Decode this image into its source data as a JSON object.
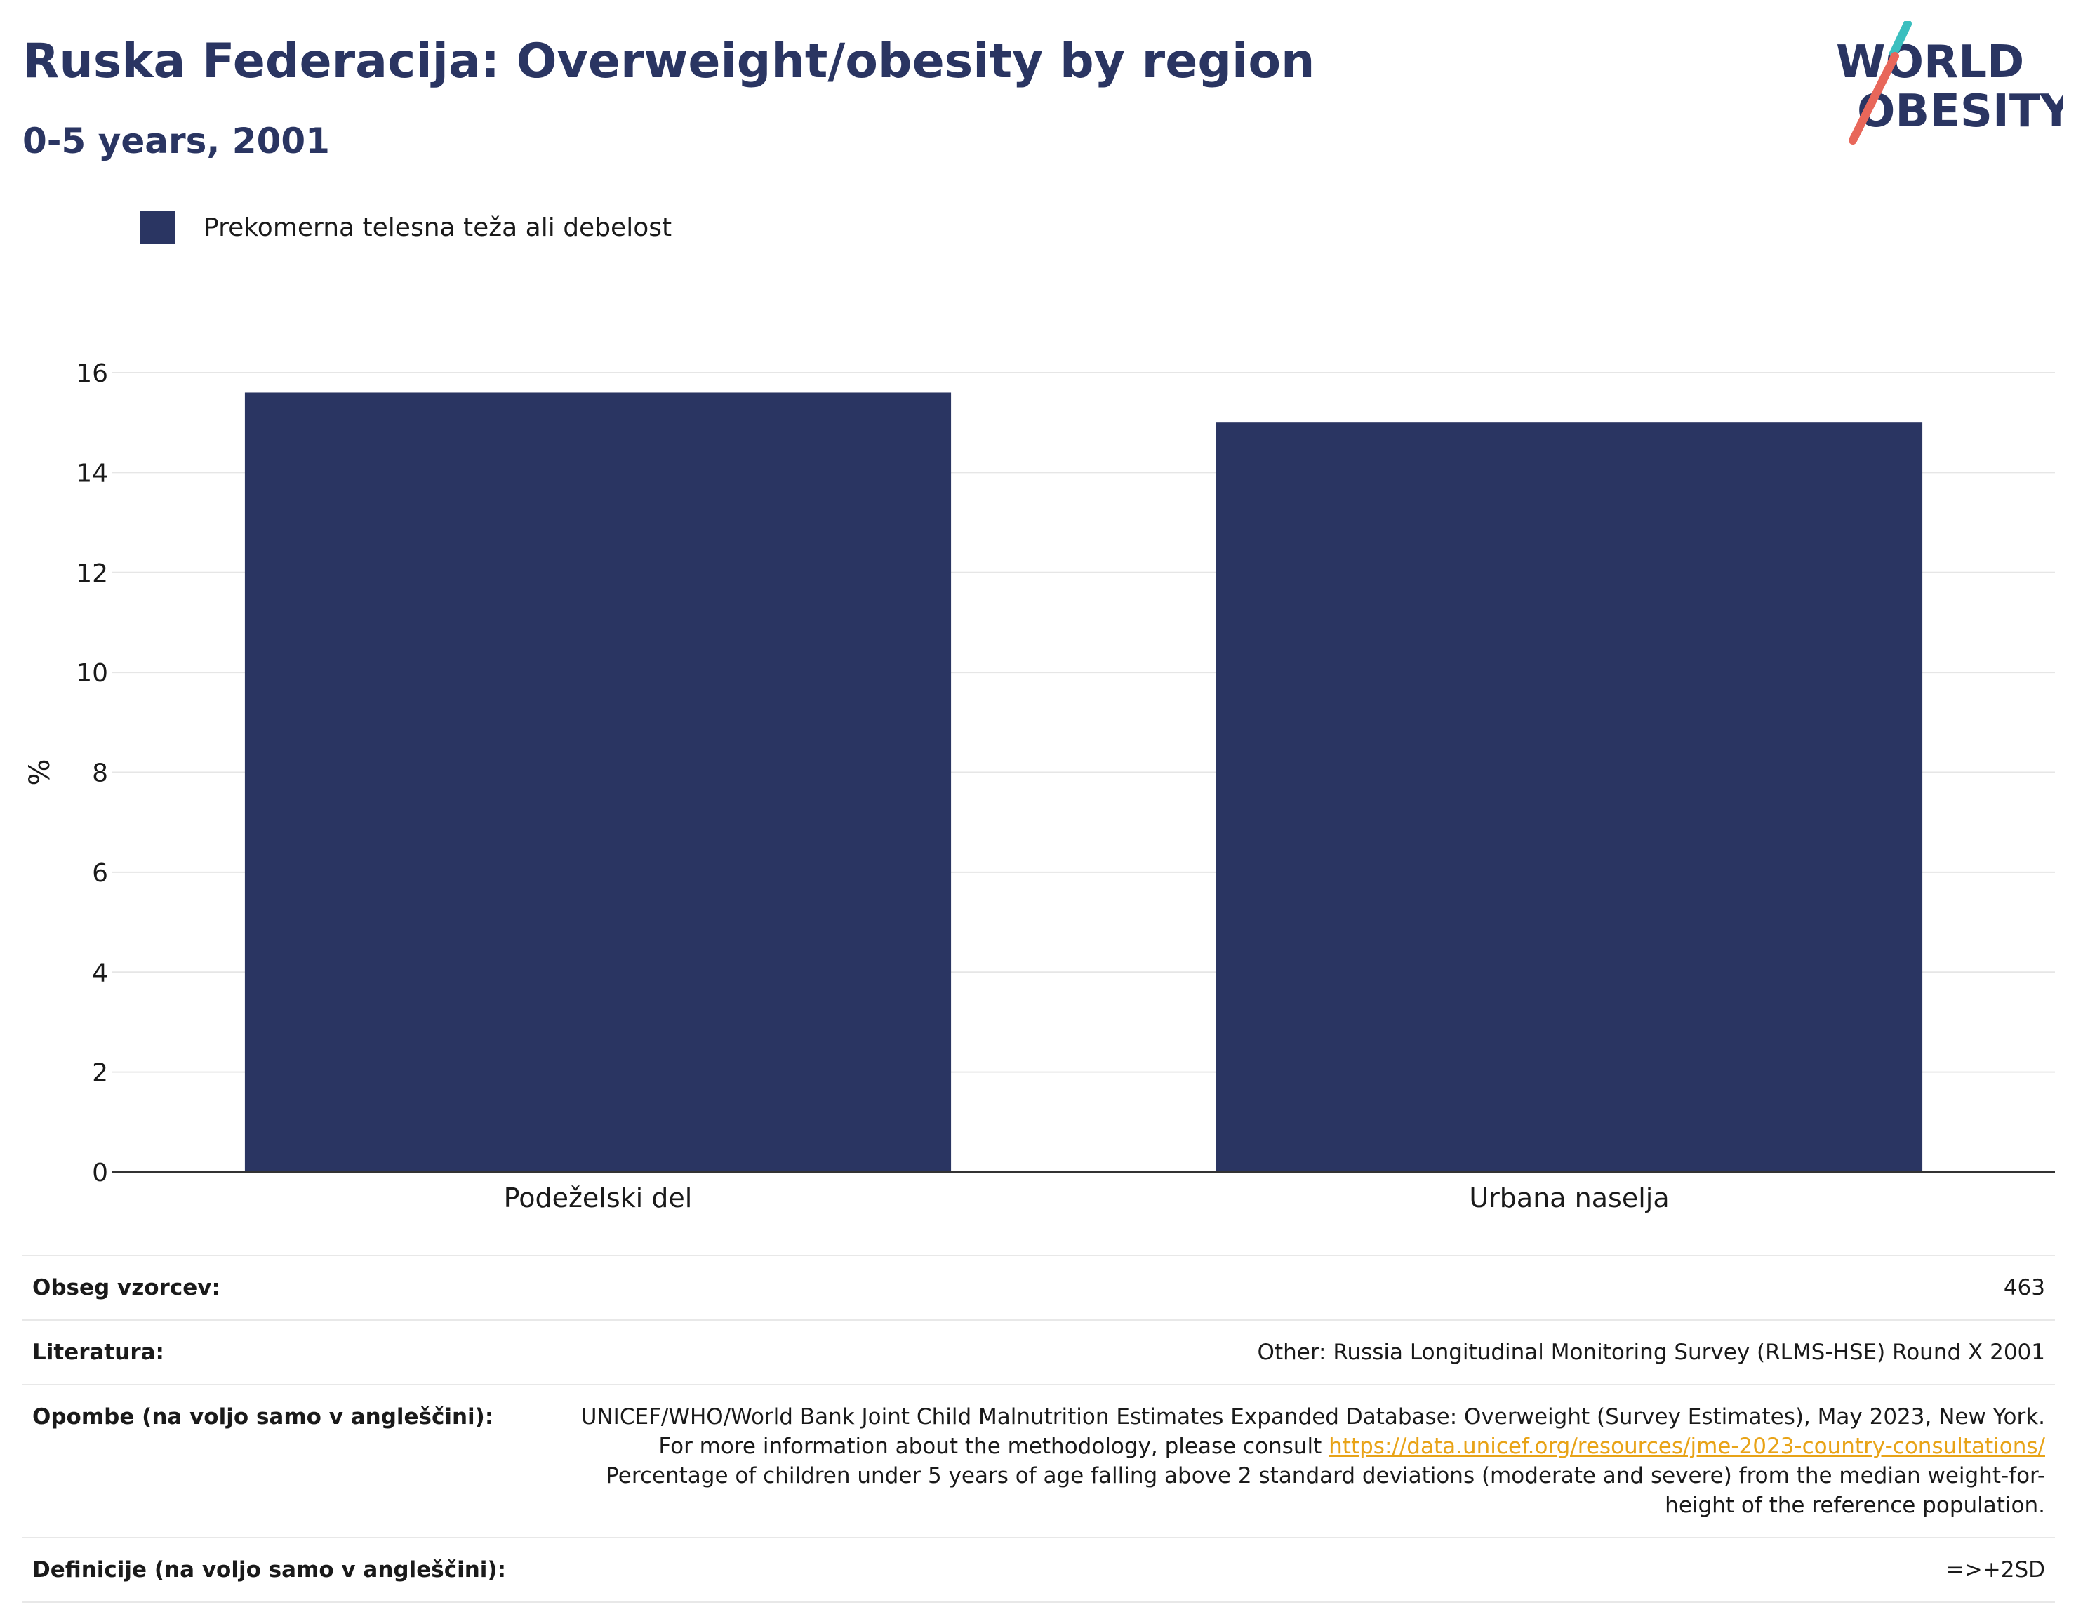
{
  "header": {
    "title": "Ruska Federacija: Overweight/obesity by region",
    "subtitle": "0-5 years, 2001"
  },
  "logo": {
    "line1": "WORLD",
    "line2": "OBESITY"
  },
  "colors": {
    "bar": "#2a3562",
    "title": "#2a3562",
    "logo_teal": "#3bbfbf",
    "logo_red": "#e8675a",
    "link": "#e8a317"
  },
  "chart_data": {
    "type": "bar",
    "categories": [
      "Podeželski del",
      "Urbana naselja"
    ],
    "series": [
      {
        "name": "Prekomerna telesna teža ali debelost",
        "values": [
          15.6,
          15.0
        ]
      }
    ],
    "ylabel": "%",
    "ylim": [
      0,
      16
    ],
    "yticks": [
      0,
      2,
      4,
      6,
      8,
      10,
      12,
      14,
      16
    ],
    "grid": true,
    "legend": "top-left"
  },
  "meta": {
    "sample_label": "Obseg vzorcev:",
    "sample_value": "463",
    "lit_label": "Literatura:",
    "lit_value": "Other: Russia Longitudinal Monitoring Survey (RLMS-HSE) Round X 2001",
    "notes_label": "Opombe (na voljo samo v angleščini):",
    "notes_text1": "UNICEF/WHO/World Bank Joint Child Malnutrition Estimates Expanded Database: Overweight (Survey Estimates), May 2023, New York. For more information about the methodology, please consult",
    "notes_link": "https://data.unicef.org/resources/jme-2023-country-consultations/",
    "notes_text2": "Percentage of children under 5 years of age falling above 2 standard deviations (moderate and severe) from the median weight-for-height of the reference population.",
    "def_label": "Definicije (na voljo samo v angleščini):",
    "def_value": "=>+2SD"
  }
}
